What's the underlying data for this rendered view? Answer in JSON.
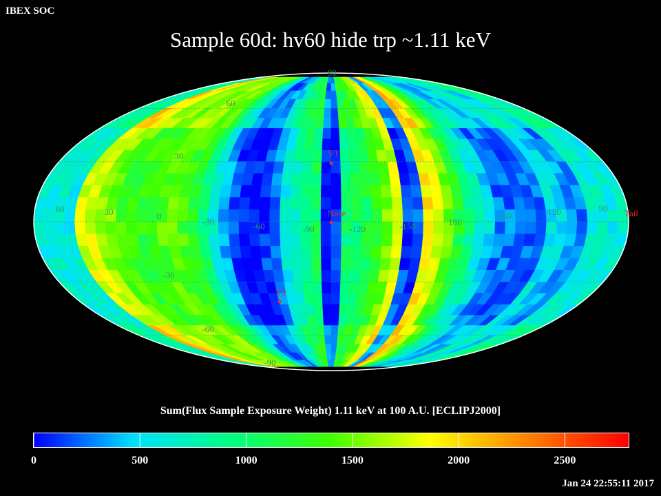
{
  "header": {
    "org": "IBEX SOC",
    "title": "Sample 60d: hv60 hide trp ~1.11 keV"
  },
  "map": {
    "projection": "mollweide",
    "lat_labels": [
      "90",
      "60",
      "30",
      "-30",
      "-60",
      "-90"
    ],
    "lon_labels": [
      "60",
      "30",
      "0",
      "-30",
      "-60",
      "-90",
      "-120",
      "-150",
      "180",
      "150",
      "120",
      "90"
    ],
    "markers": [
      {
        "label": "V1",
        "name": "v1"
      },
      {
        "label": "Nose",
        "name": "nose"
      },
      {
        "label": "V2",
        "name": "v2"
      },
      {
        "label": "Tail",
        "name": "tail"
      }
    ],
    "grid_color": "#2a9a6a",
    "marker_color": "#e03030"
  },
  "colorbar": {
    "title": "Sum(Flux Sample Exposure Weight)  1.11 keV at 100 A.U. [ECLIPJ2000]",
    "min": 0,
    "max": 2800,
    "ticks": [
      "0",
      "500",
      "1000",
      "1500",
      "2000",
      "2500"
    ],
    "tick_values": [
      0,
      500,
      1000,
      1500,
      2000,
      2500
    ],
    "colormap": [
      "#0000ff",
      "#00e0ff",
      "#00ff80",
      "#40ff00",
      "#ffff00",
      "#ff8000",
      "#ff0000"
    ]
  },
  "footer": {
    "timestamp": "Jan 24 22:55:11 2017"
  }
}
